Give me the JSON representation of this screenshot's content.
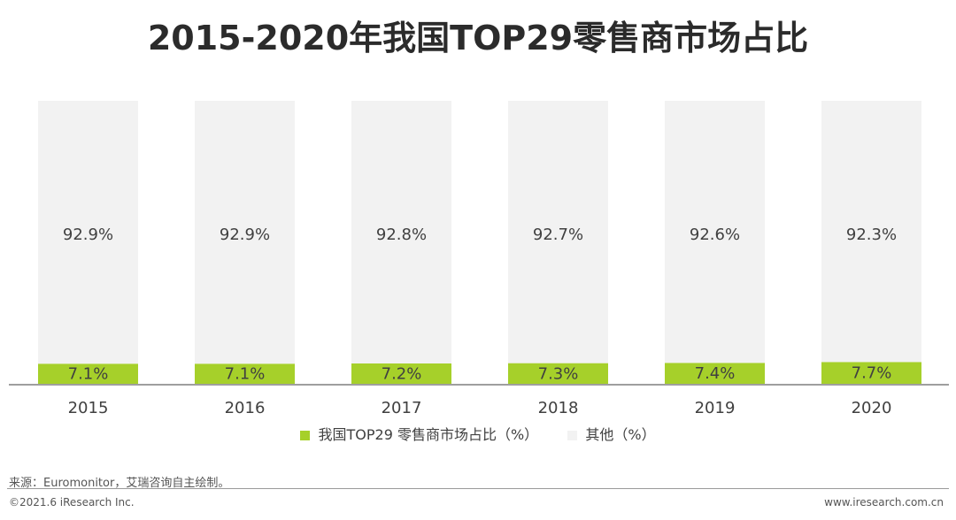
{
  "chart_data": {
    "type": "bar",
    "stacked": true,
    "title": "2015-2020年我国TOP29零售商市场占比",
    "categories": [
      "2015",
      "2016",
      "2017",
      "2018",
      "2019",
      "2020"
    ],
    "series": [
      {
        "name": "我国TOP29 零售商市场占比（%）",
        "values": [
          7.1,
          7.1,
          7.2,
          7.3,
          7.4,
          7.7
        ],
        "labels": [
          "7.1%",
          "7.1%",
          "7.2%",
          "7.3%",
          "7.4%",
          "7.7%"
        ],
        "color": "#a6d02a"
      },
      {
        "name": "其他（%）",
        "values": [
          92.9,
          92.9,
          92.8,
          92.7,
          92.6,
          92.3
        ],
        "labels": [
          "92.9%",
          "92.9%",
          "92.8%",
          "92.7%",
          "92.6%",
          "92.3%"
        ],
        "color": "#f2f2f2"
      }
    ],
    "ylim": [
      0,
      100
    ],
    "legend": "bottom",
    "xlabel": "",
    "ylabel": ""
  },
  "source": "来源：Euromonitor，艾瑞咨询自主绘制。",
  "copyright": "©2021.6 iResearch Inc.",
  "website": "www.iresearch.com.cn"
}
